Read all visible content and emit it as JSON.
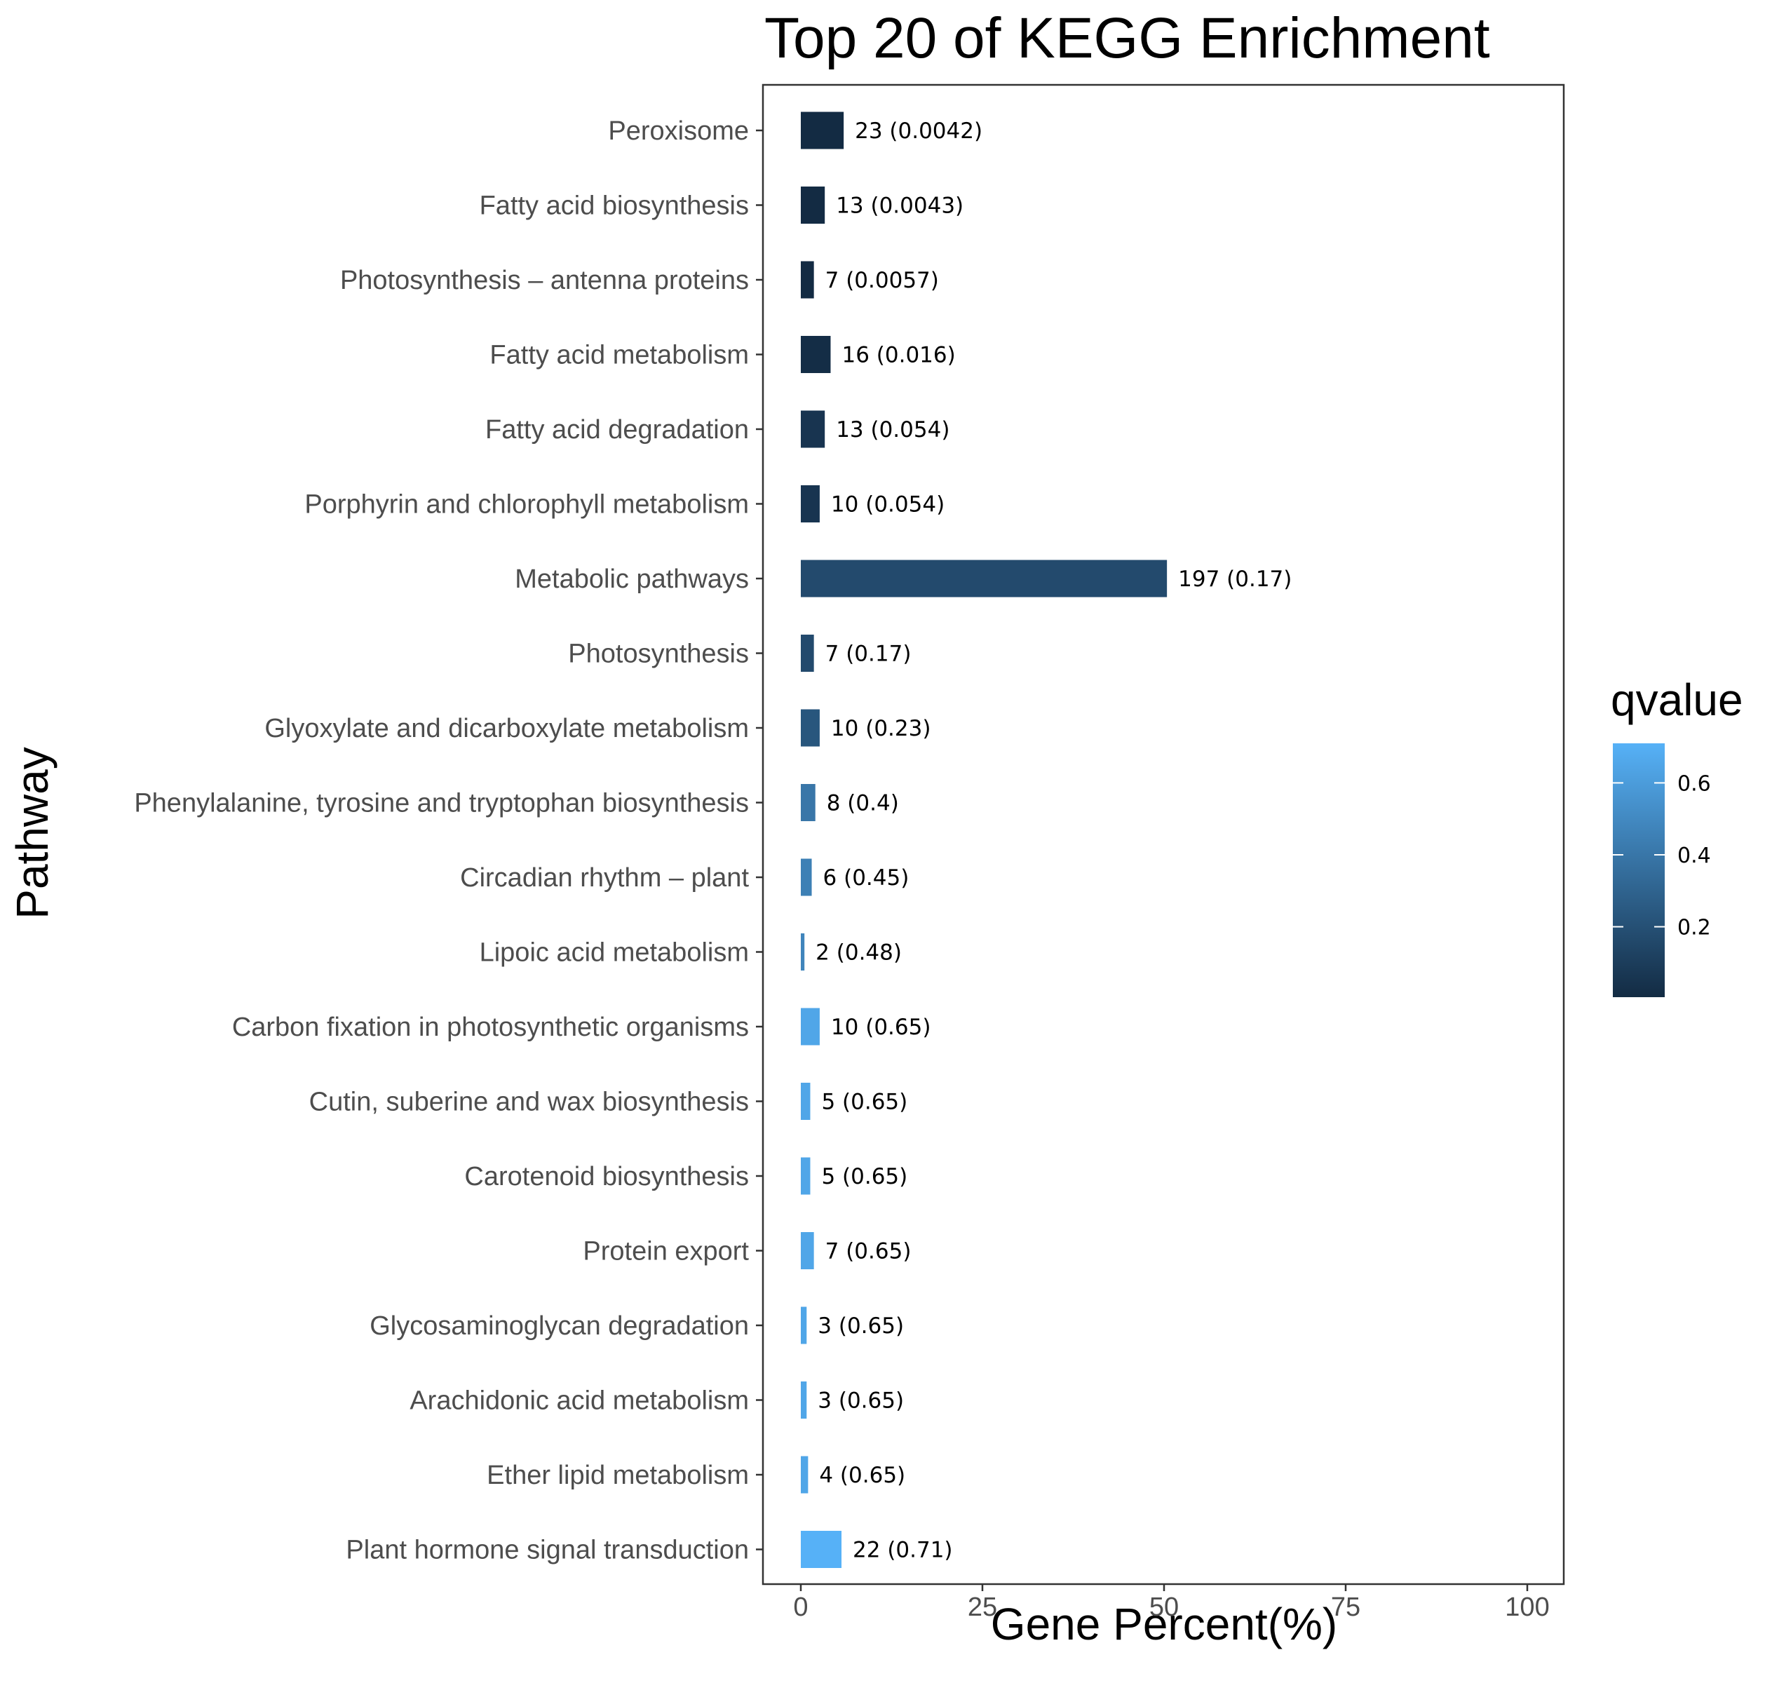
{
  "chart_data": {
    "type": "bar",
    "orientation": "horizontal",
    "title": "Top 20 of KEGG Enrichment",
    "xlabel": "Gene Percent(%)",
    "ylabel": "Pathway",
    "xlim": [
      0,
      100
    ],
    "x_ticks": [
      0,
      25,
      50,
      75,
      100
    ],
    "grid": false,
    "legend": {
      "title": "qvalue",
      "placement": "right",
      "type": "colorbar",
      "range": [
        0.0042,
        0.71
      ],
      "ticks": [
        0.2,
        0.4,
        0.6
      ],
      "color_low": "#132b43",
      "color_high": "#56b1f7"
    },
    "categories": [
      "Peroxisome",
      "Fatty acid biosynthesis",
      "Photosynthesis – antenna proteins",
      "Fatty acid metabolism",
      "Fatty acid degradation",
      "Porphyrin and chlorophyll metabolism",
      "Metabolic pathways",
      "Photosynthesis",
      "Glyoxylate and dicarboxylate metabolism",
      "Phenylalanine, tyrosine and tryptophan biosynthesis",
      "Circadian rhythm – plant",
      "Lipoic acid metabolism",
      "Carbon fixation in photosynthetic organisms",
      "Cutin, suberine and wax biosynthesis",
      "Carotenoid biosynthesis",
      "Protein export",
      "Glycosaminoglycan degradation",
      "Arachidonic acid metabolism",
      "Ether lipid metabolism",
      "Plant hormone signal transduction"
    ],
    "values": [
      5.9,
      3.3,
      1.8,
      4.1,
      3.3,
      2.6,
      50.4,
      1.8,
      2.6,
      2.0,
      1.5,
      0.5,
      2.6,
      1.3,
      1.3,
      1.8,
      0.8,
      0.8,
      1.0,
      5.6
    ],
    "qvalues": [
      0.0042,
      0.0043,
      0.0057,
      0.016,
      0.054,
      0.054,
      0.17,
      0.17,
      0.23,
      0.4,
      0.45,
      0.48,
      0.65,
      0.65,
      0.65,
      0.65,
      0.65,
      0.65,
      0.65,
      0.71
    ],
    "data_labels": [
      "23 (0.0042)",
      "13 (0.0043)",
      "7 (0.0057)",
      "16 (0.016)",
      "13 (0.054)",
      "10 (0.054)",
      "197 (0.17)",
      "7 (0.17)",
      "10 (0.23)",
      "8 (0.4)",
      "6 (0.45)",
      "2 (0.48)",
      "10 (0.65)",
      "5 (0.65)",
      "5 (0.65)",
      "7 (0.65)",
      "3 (0.65)",
      "3 (0.65)",
      "4 (0.65)",
      "22 (0.71)"
    ]
  }
}
